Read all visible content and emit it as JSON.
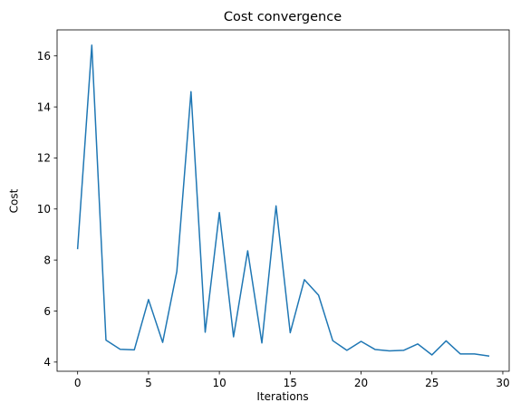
{
  "chart_data": {
    "type": "line",
    "title": "Cost convergence",
    "xlabel": "Iterations",
    "ylabel": "Cost",
    "xlim": [
      -1.45,
      30.45
    ],
    "ylim": [
      3.64,
      17.02
    ],
    "xticks": [
      0,
      5,
      10,
      15,
      20,
      25,
      30
    ],
    "yticks": [
      4,
      6,
      8,
      10,
      12,
      14,
      16
    ],
    "grid": false,
    "series": [
      {
        "color": "#1f77b4",
        "x": [
          0,
          1,
          2,
          3,
          4,
          5,
          6,
          7,
          8,
          9,
          10,
          11,
          12,
          13,
          14,
          15,
          16,
          17,
          18,
          19,
          20,
          21,
          22,
          23,
          24,
          25,
          26,
          27,
          28,
          29
        ],
        "y": [
          8.45,
          16.42,
          4.86,
          4.5,
          4.48,
          6.45,
          4.77,
          7.55,
          14.6,
          5.17,
          9.86,
          4.99,
          8.36,
          4.75,
          10.12,
          5.15,
          7.23,
          6.62,
          4.84,
          4.46,
          4.81,
          4.49,
          4.44,
          4.46,
          4.71,
          4.28,
          4.83,
          4.32,
          4.32,
          4.24
        ]
      }
    ]
  }
}
